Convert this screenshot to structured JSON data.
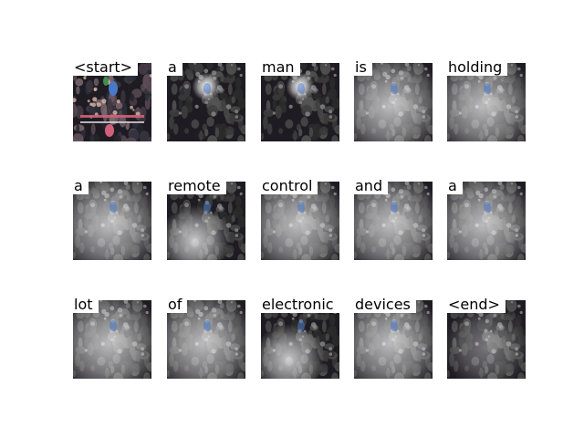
{
  "tokens": [
    {
      "word": "<start>",
      "attention": "original"
    },
    {
      "word": "a",
      "attention": "focused-center"
    },
    {
      "word": "man",
      "attention": "focused-center"
    },
    {
      "word": "is",
      "attention": "spread"
    },
    {
      "word": "holding",
      "attention": "spread"
    },
    {
      "word": "a",
      "attention": "spread"
    },
    {
      "word": "remote",
      "attention": "bottom-left"
    },
    {
      "word": "control",
      "attention": "spread"
    },
    {
      "word": "and",
      "attention": "spread"
    },
    {
      "word": "a",
      "attention": "spread"
    },
    {
      "word": "lot",
      "attention": "spread"
    },
    {
      "word": "of",
      "attention": "spread"
    },
    {
      "word": "electronic",
      "attention": "bottom-left"
    },
    {
      "word": "devices",
      "attention": "spread"
    },
    {
      "word": "<end>",
      "attention": "dim"
    }
  ],
  "colors": {
    "background": "#ffffff",
    "label_text": "#000000",
    "crowd_dark": "#1e1c22",
    "accent_blue": "#4a78c8",
    "accent_pink": "#d0607a",
    "accent_green": "#3f8f4a"
  }
}
